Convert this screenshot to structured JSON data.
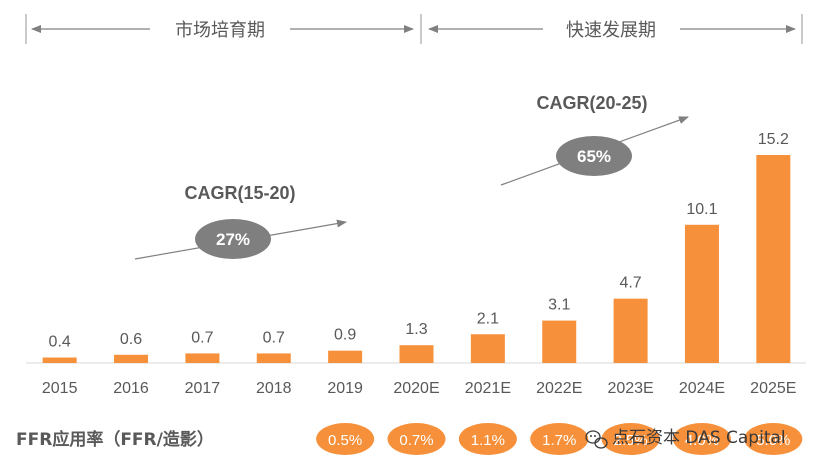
{
  "phases": [
    {
      "label": "市场培育期"
    },
    {
      "label": "快速发展期"
    }
  ],
  "chart_data": {
    "type": "bar",
    "categories": [
      "2015",
      "2016",
      "2017",
      "2018",
      "2019",
      "2020E",
      "2021E",
      "2022E",
      "2023E",
      "2024E",
      "2025E"
    ],
    "values": [
      0.4,
      0.6,
      0.7,
      0.7,
      0.9,
      1.3,
      2.1,
      3.1,
      4.7,
      10.1,
      15.2
    ],
    "value_labels": [
      "0.4",
      "0.6",
      "0.7",
      "0.7",
      "0.9",
      "1.3",
      "2.1",
      "3.1",
      "4.7",
      "10.1",
      "15.2"
    ],
    "ylim": [
      0,
      16.5
    ],
    "bar_color": "#f7903a",
    "grid": false,
    "annotations": [
      {
        "title": "CAGR(15-20)",
        "value": "27%"
      },
      {
        "title": "CAGR(20-25)",
        "value": "65%"
      }
    ]
  },
  "ffr": {
    "label": "FFR应用率（FFR/造影）",
    "values": [
      "0.5%",
      "0.7%",
      "1.1%",
      "1.7%",
      "2.5%",
      "4.0%",
      "5.0%"
    ],
    "color": "#f7903a"
  },
  "watermark": {
    "text": "点石资本 DAS Capital",
    "icon": "wechat-icon"
  },
  "colors": {
    "bar": "#f7903a",
    "pill": "#7f7f7f",
    "text": "#595959",
    "axis": "#d9d9d9"
  }
}
